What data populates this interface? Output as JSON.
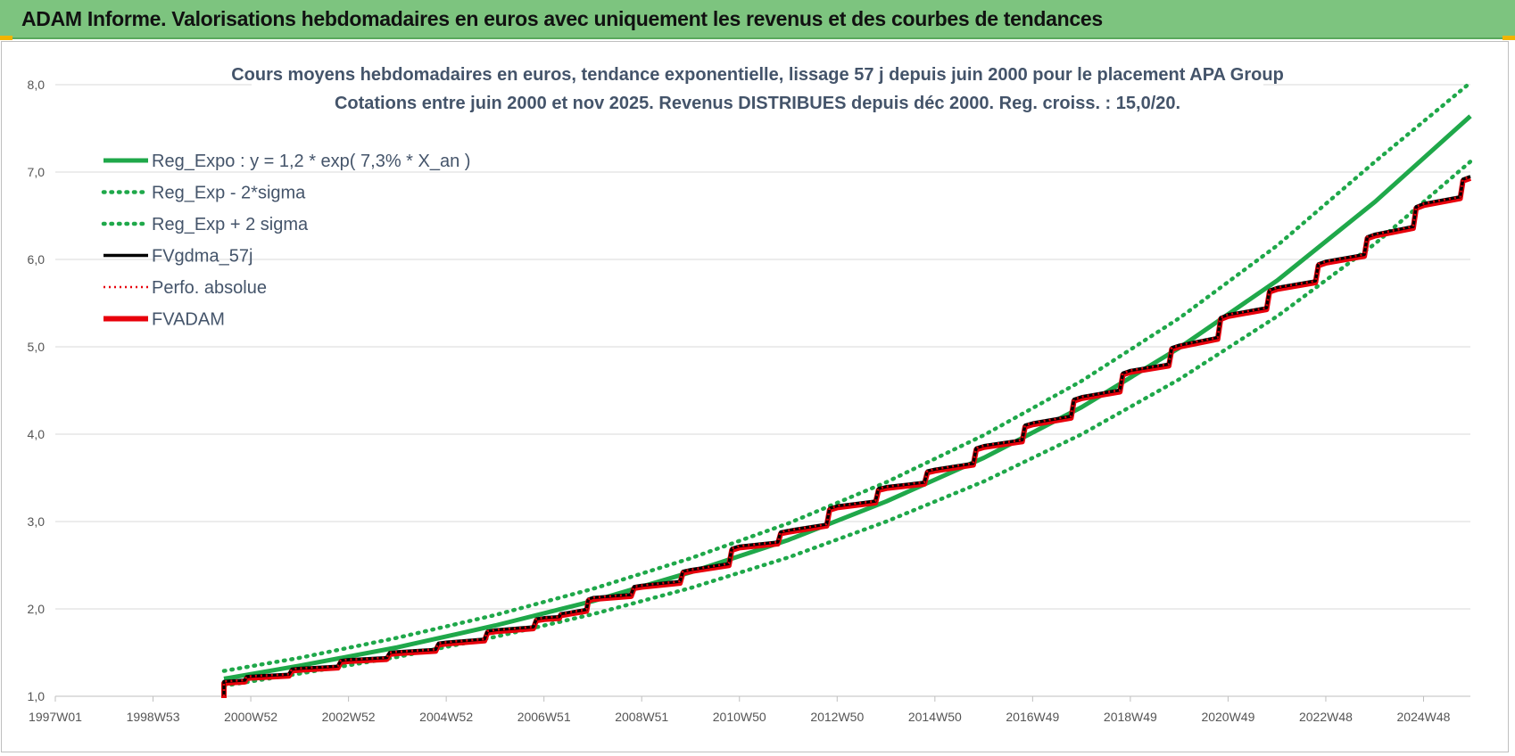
{
  "header": {
    "title": "ADAM Informe. Valorisations hebdomadaires en euros avec uniquement les revenus et des courbes de tendances"
  },
  "colors": {
    "banner": "#7dc47f",
    "green": "#1fa84a",
    "black": "#000000",
    "red": "#e8000b",
    "grid": "#d9d9d9"
  },
  "chart_data": {
    "type": "line",
    "title": "Cours moyens hebdomadaires en euros, tendance exponentielle, lissage 57 j depuis juin 2000 pour le placement APA Group",
    "subtitle": "Cotations entre juin 2000 et nov 2025. Revenus DISTRIBUES depuis déc 2000. Reg. croiss. : 15,0/20.",
    "xlabel": "",
    "ylabel": "",
    "x_tick_labels": [
      "1997W01",
      "1998W53",
      "2000W52",
      "2002W52",
      "2004W52",
      "2006W51",
      "2008W51",
      "2010W50",
      "2012W50",
      "2014W50",
      "2016W49",
      "2018W49",
      "2020W49",
      "2022W48",
      "2024W48"
    ],
    "x_range_years": [
      1997.0,
      2025.95
    ],
    "y_tick_labels": [
      "1,0",
      "2,0",
      "3,0",
      "4,0",
      "5,0",
      "6,0",
      "7,0",
      "8,0"
    ],
    "ylim": [
      1.0,
      8.0
    ],
    "grid": true,
    "legend_position": "top-left",
    "series": [
      {
        "name": "Reg_Expo : y = 1,2 * exp( 7,3% *  X_an )",
        "style": "solid-green",
        "x": [
          2000.45,
          2002.0,
          2004.0,
          2006.0,
          2008.0,
          2010.0,
          2012.0,
          2014.0,
          2016.0,
          2018.0,
          2020.0,
          2022.0,
          2024.0,
          2025.95
        ],
        "y": [
          1.2,
          1.35,
          1.56,
          1.81,
          2.09,
          2.42,
          2.79,
          3.23,
          3.73,
          4.31,
          4.99,
          5.76,
          6.66,
          7.64
        ]
      },
      {
        "name": "Reg_Exp - 2*sigma",
        "style": "dotted-green",
        "x": [
          2000.45,
          2002.0,
          2004.0,
          2006.0,
          2008.0,
          2010.0,
          2012.0,
          2014.0,
          2016.0,
          2018.0,
          2020.0,
          2022.0,
          2024.0,
          2025.95
        ],
        "y": [
          1.12,
          1.26,
          1.45,
          1.68,
          1.94,
          2.24,
          2.59,
          3.0,
          3.46,
          4.0,
          4.63,
          5.35,
          6.18,
          7.12
        ]
      },
      {
        "name": "Reg_Exp + 2 sigma",
        "style": "dotted-green",
        "x": [
          2000.45,
          2002.0,
          2004.0,
          2006.0,
          2008.0,
          2010.0,
          2012.0,
          2014.0,
          2016.0,
          2018.0,
          2020.0,
          2022.0,
          2024.0,
          2025.9
        ],
        "y": [
          1.29,
          1.44,
          1.67,
          1.93,
          2.23,
          2.58,
          2.98,
          3.45,
          3.99,
          4.61,
          5.33,
          6.16,
          7.12,
          8.0
        ]
      },
      {
        "name": "FVgdma_57j",
        "style": "solid-black",
        "x": [
          2000.45,
          2000.45,
          2001.0,
          2002.0,
          2003.0,
          2004.0,
          2005.0,
          2006.0,
          2007.0,
          2007.4,
          2008.0,
          2009.0,
          2010.0,
          2011.0,
          2012.0,
          2013.0,
          2014.0,
          2015.0,
          2016.0,
          2017.0,
          2018.0,
          2019.0,
          2020.0,
          2021.0,
          2022.0,
          2023.0,
          2024.0,
          2025.0,
          2025.95
        ],
        "y": [
          1.0,
          1.17,
          1.23,
          1.32,
          1.42,
          1.51,
          1.62,
          1.76,
          1.9,
          1.95,
          2.13,
          2.27,
          2.45,
          2.72,
          2.9,
          3.18,
          3.4,
          3.6,
          3.87,
          4.13,
          4.43,
          4.73,
          5.02,
          5.37,
          5.68,
          5.98,
          6.29,
          6.64,
          6.95
        ]
      },
      {
        "name": "Perfo. absolue",
        "style": "dotted-red",
        "x": [
          2000.45,
          2000.45,
          2001.0,
          2002.0,
          2003.0,
          2004.0,
          2005.0,
          2006.0,
          2007.0,
          2007.4,
          2008.0,
          2009.0,
          2010.0,
          2011.0,
          2012.0,
          2013.0,
          2014.0,
          2015.0,
          2016.0,
          2017.0,
          2018.0,
          2019.0,
          2020.0,
          2021.0,
          2022.0,
          2023.0,
          2024.0,
          2025.0,
          2025.95
        ],
        "y": [
          1.0,
          1.17,
          1.23,
          1.32,
          1.42,
          1.51,
          1.62,
          1.76,
          1.9,
          1.95,
          2.13,
          2.27,
          2.45,
          2.72,
          2.9,
          3.18,
          3.4,
          3.6,
          3.87,
          4.13,
          4.43,
          4.73,
          5.02,
          5.37,
          5.68,
          5.98,
          6.29,
          6.64,
          6.95
        ]
      },
      {
        "name": "FVADAM",
        "style": "thick-red-step",
        "x": [
          2000.45,
          2000.45,
          2001.0,
          2002.0,
          2003.0,
          2004.0,
          2005.0,
          2006.0,
          2007.0,
          2007.4,
          2008.0,
          2009.0,
          2010.0,
          2011.0,
          2012.0,
          2013.0,
          2014.0,
          2015.0,
          2016.0,
          2017.0,
          2018.0,
          2019.0,
          2020.0,
          2021.0,
          2022.0,
          2023.0,
          2024.0,
          2025.0,
          2025.95
        ],
        "y": [
          1.0,
          1.17,
          1.23,
          1.32,
          1.42,
          1.51,
          1.62,
          1.76,
          1.9,
          1.95,
          2.13,
          2.27,
          2.45,
          2.72,
          2.9,
          3.18,
          3.4,
          3.6,
          3.87,
          4.13,
          4.43,
          4.73,
          5.02,
          5.37,
          5.68,
          5.98,
          6.29,
          6.64,
          6.95
        ]
      }
    ]
  }
}
